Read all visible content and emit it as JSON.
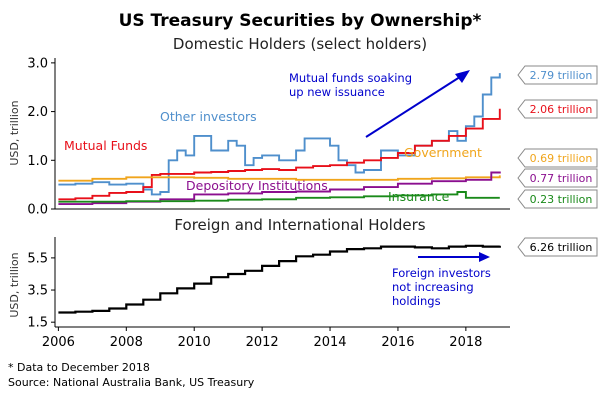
{
  "header": {
    "title": "US Treasury Securities by Ownership*",
    "subtitle_top": "Domestic Holders (select holders)",
    "subtitle_bottom": "Foreign and International Holders"
  },
  "footer": {
    "note": "* Data to December 2018",
    "source": "Source: National Australia Bank, US Treasury"
  },
  "chart_data": [
    {
      "type": "line",
      "title": "Domestic Holders (select holders)",
      "ylabel": "USD, trillion",
      "xlim": [
        2005.9,
        2019.3
      ],
      "ylim": [
        0,
        3.1
      ],
      "yticks": [
        0.0,
        1.0,
        2.0,
        3.0
      ],
      "ytick_labels": [
        "0.0",
        "1.0",
        "2.0",
        "3.0"
      ],
      "grid": false,
      "series": [
        {
          "name": "Other investors",
          "color": "#4f8fcc",
          "end_label": "2.79 trillion",
          "x": [
            2006.0,
            2006.5,
            2007.0,
            2007.5,
            2008.0,
            2008.5,
            2008.75,
            2009.0,
            2009.25,
            2009.5,
            2009.75,
            2010.0,
            2010.5,
            2011.0,
            2011.25,
            2011.5,
            2011.75,
            2012.0,
            2012.5,
            2013.0,
            2013.25,
            2013.5,
            2014.0,
            2014.25,
            2014.5,
            2014.75,
            2015.0,
            2015.5,
            2016.0,
            2016.5,
            2017.0,
            2017.5,
            2017.75,
            2018.0,
            2018.25,
            2018.5,
            2018.75,
            2019.0
          ],
          "y": [
            0.5,
            0.52,
            0.55,
            0.5,
            0.52,
            0.4,
            0.3,
            0.35,
            1.0,
            1.2,
            1.1,
            1.5,
            1.2,
            1.4,
            1.3,
            0.9,
            1.05,
            1.1,
            1.0,
            1.2,
            1.45,
            1.45,
            1.3,
            1.0,
            0.9,
            0.75,
            0.8,
            1.2,
            1.1,
            1.3,
            1.4,
            1.6,
            1.4,
            1.7,
            1.9,
            2.35,
            2.7,
            2.79
          ]
        },
        {
          "name": "Mutual Funds",
          "color": "#e8101a",
          "end_label": "2.06 trillion",
          "x": [
            2006.0,
            2006.5,
            2007.0,
            2007.5,
            2008.0,
            2008.5,
            2008.75,
            2009.0,
            2009.5,
            2010.0,
            2010.5,
            2011.0,
            2011.5,
            2012.0,
            2012.5,
            2013.0,
            2013.5,
            2014.0,
            2014.5,
            2015.0,
            2015.5,
            2016.0,
            2016.5,
            2017.0,
            2017.5,
            2018.0,
            2018.5,
            2019.0
          ],
          "y": [
            0.2,
            0.22,
            0.27,
            0.33,
            0.35,
            0.45,
            0.7,
            0.72,
            0.72,
            0.75,
            0.76,
            0.78,
            0.8,
            0.82,
            0.8,
            0.85,
            0.88,
            0.9,
            0.95,
            1.0,
            1.05,
            1.15,
            1.3,
            1.4,
            1.5,
            1.65,
            1.85,
            2.06
          ]
        },
        {
          "name": "Government",
          "color": "#f0a51c",
          "end_label": "0.69 trillion",
          "x": [
            2006.0,
            2007.0,
            2008.0,
            2009.0,
            2010.0,
            2011.0,
            2012.0,
            2013.0,
            2014.0,
            2015.0,
            2016.0,
            2017.0,
            2018.0,
            2019.0
          ],
          "y": [
            0.58,
            0.62,
            0.65,
            0.65,
            0.64,
            0.62,
            0.62,
            0.6,
            0.6,
            0.6,
            0.62,
            0.63,
            0.65,
            0.69
          ]
        },
        {
          "name": "Depository Institutions",
          "color": "#8b0f8f",
          "end_label": "0.77 trillion",
          "x": [
            2006.0,
            2007.0,
            2008.0,
            2009.0,
            2010.0,
            2011.0,
            2012.0,
            2013.0,
            2014.0,
            2015.0,
            2016.0,
            2017.0,
            2018.0,
            2018.75,
            2019.0
          ],
          "y": [
            0.1,
            0.12,
            0.15,
            0.2,
            0.3,
            0.32,
            0.35,
            0.36,
            0.4,
            0.45,
            0.52,
            0.57,
            0.6,
            0.75,
            0.77
          ]
        },
        {
          "name": "Insurance",
          "color": "#1a8a1a",
          "end_label": "0.23 trillion",
          "x": [
            2006.0,
            2007.0,
            2008.0,
            2009.0,
            2010.0,
            2011.0,
            2012.0,
            2013.0,
            2014.0,
            2015.0,
            2016.0,
            2017.0,
            2017.75,
            2018.0,
            2019.0
          ],
          "y": [
            0.15,
            0.15,
            0.16,
            0.16,
            0.17,
            0.19,
            0.2,
            0.23,
            0.24,
            0.26,
            0.28,
            0.3,
            0.35,
            0.23,
            0.23
          ]
        }
      ],
      "annotations": [
        {
          "text": "Mutual funds soaking",
          "color": "#0000cc"
        },
        {
          "text": "up new issuance",
          "color": "#0000cc"
        }
      ]
    },
    {
      "type": "line",
      "title": "Foreign and International Holders",
      "ylabel": "USD, trillion",
      "xlabel": "",
      "xlim": [
        2005.9,
        2019.3
      ],
      "ylim": [
        1.2,
        6.8
      ],
      "yticks": [
        1.5,
        3.5,
        5.5
      ],
      "ytick_labels": [
        "1.5",
        "3.5",
        "5.5"
      ],
      "xticks": [
        2006,
        2008,
        2010,
        2012,
        2014,
        2016,
        2018
      ],
      "xtick_labels": [
        "2006",
        "2008",
        "2010",
        "2012",
        "2014",
        "2016",
        "2018"
      ],
      "grid": false,
      "series": [
        {
          "name": "Foreign",
          "color": "#000000",
          "end_label": "6.26 trillion",
          "x": [
            2006.0,
            2006.5,
            2007.0,
            2007.5,
            2008.0,
            2008.5,
            2009.0,
            2009.5,
            2010.0,
            2010.5,
            2011.0,
            2011.5,
            2012.0,
            2012.5,
            2013.0,
            2013.5,
            2014.0,
            2014.5,
            2015.0,
            2015.5,
            2016.0,
            2016.5,
            2017.0,
            2017.5,
            2018.0,
            2018.5,
            2019.0
          ],
          "y": [
            2.1,
            2.15,
            2.2,
            2.35,
            2.6,
            2.9,
            3.3,
            3.6,
            3.9,
            4.3,
            4.5,
            4.7,
            5.0,
            5.3,
            5.6,
            5.7,
            5.9,
            6.05,
            6.1,
            6.2,
            6.2,
            6.15,
            6.1,
            6.2,
            6.25,
            6.2,
            6.26
          ]
        }
      ],
      "annotations": [
        {
          "text": "Foreign investors",
          "color": "#0000cc"
        },
        {
          "text": "not increasing",
          "color": "#0000cc"
        },
        {
          "text": "holdings",
          "color": "#0000cc"
        }
      ]
    }
  ]
}
